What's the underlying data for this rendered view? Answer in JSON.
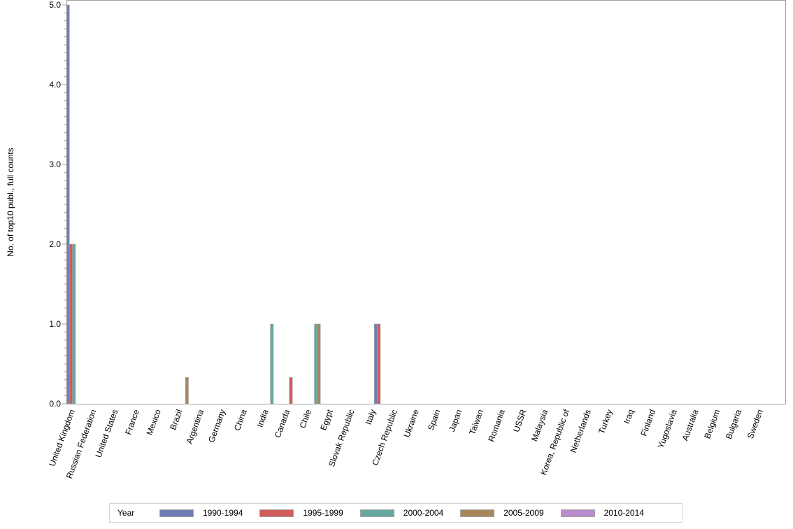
{
  "chart_data": {
    "type": "bar",
    "title": "",
    "xlabel": "",
    "ylabel": "No. of top10 publ., full counts",
    "ylim": [
      0,
      5
    ],
    "yticks": [
      "0.0",
      "1.0",
      "2.0",
      "3.0",
      "4.0",
      "5.0"
    ],
    "grid": false,
    "legend_position": "bottom",
    "legend_title": "Year",
    "categories": [
      "United Kingdom",
      "Russian Federation",
      "United States",
      "France",
      "Mexico",
      "Brazil",
      "Argentina",
      "Germany",
      "China",
      "India",
      "Canada",
      "Chile",
      "Egypt",
      "Slovak Republic",
      "Italy",
      "Czech Republic",
      "Ukraine",
      "Spain",
      "Japan",
      "Taiwan",
      "Romania",
      "USSR",
      "Malaysia",
      "Korea, Republic of",
      "Netherlands",
      "Turkey",
      "Iraq",
      "Finland",
      "Yugoslavia",
      "Australia",
      "Belgium",
      "Bulgaria",
      "Sweden"
    ],
    "series": [
      {
        "name": "1990-1994",
        "color": "#6f7fb5",
        "values": [
          5,
          0,
          0,
          0,
          0,
          0,
          0,
          0,
          0,
          0,
          0,
          0,
          0,
          0,
          1,
          0,
          0,
          0,
          0,
          0,
          0,
          0,
          0,
          0,
          0,
          0,
          0,
          0,
          0,
          0,
          0,
          0,
          0
        ]
      },
      {
        "name": "1995-1999",
        "color": "#d05b5b",
        "values": [
          2,
          0,
          0,
          0,
          0,
          0,
          0,
          0,
          0,
          0,
          0.33,
          0,
          0,
          0,
          1,
          0,
          0,
          0,
          0,
          0,
          0,
          0,
          0,
          0,
          0,
          0,
          0,
          0,
          0,
          0,
          0,
          0,
          0
        ]
      },
      {
        "name": "2000-2004",
        "color": "#66a8a0",
        "values": [
          2,
          0,
          0,
          0,
          0,
          0,
          0,
          0,
          0,
          1,
          0,
          1,
          0,
          0,
          0,
          0,
          0,
          0,
          0,
          0,
          0,
          0,
          0,
          0,
          0,
          0,
          0,
          0,
          0,
          0,
          0,
          0,
          0
        ]
      },
      {
        "name": "2005-2009",
        "color": "#a8865c",
        "values": [
          0,
          0,
          0,
          0,
          0,
          0.33,
          0,
          0,
          0,
          0,
          0,
          1,
          0,
          0,
          0,
          0,
          0,
          0,
          0,
          0,
          0,
          0,
          0,
          0,
          0,
          0,
          0,
          0,
          0,
          0,
          0,
          0,
          0
        ]
      },
      {
        "name": "2010-2014",
        "color": "#b88ccc",
        "values": [
          0,
          0,
          0,
          0,
          0,
          0,
          0,
          0,
          0,
          0,
          0,
          0,
          0,
          0,
          0,
          0,
          0,
          0,
          0,
          0,
          0,
          0,
          0,
          0,
          0,
          0,
          0,
          0,
          0,
          0,
          0,
          0,
          0
        ]
      }
    ]
  },
  "legend": {
    "title": "Year",
    "items": [
      {
        "label": "1990-1994",
        "color": "#6f7fb5"
      },
      {
        "label": "1995-1999",
        "color": "#d05b5b"
      },
      {
        "label": "2000-2004",
        "color": "#66a8a0"
      },
      {
        "label": "2005-2009",
        "color": "#a8865c"
      },
      {
        "label": "2010-2014",
        "color": "#b88ccc"
      }
    ]
  }
}
